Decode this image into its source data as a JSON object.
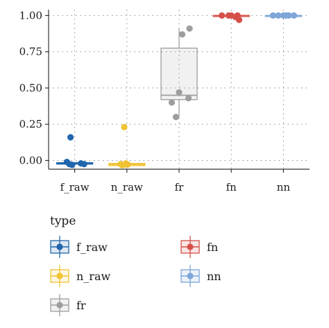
{
  "chart_data": {
    "type": "box",
    "categories": [
      "f_raw",
      "n_raw",
      "fr",
      "fn",
      "nn"
    ],
    "ylim": [
      -0.06,
      1.04
    ],
    "yticks": [
      0.0,
      0.25,
      0.5,
      0.75,
      1.0
    ],
    "ytick_labels": [
      "0.00",
      "0.25",
      "0.50",
      "0.75",
      "1.00"
    ],
    "grid": "dotted",
    "legend": {
      "title": "type",
      "placement": "bottom",
      "entries": [
        "f_raw",
        "n_raw",
        "fr",
        "fn",
        "nn"
      ]
    },
    "colors": {
      "f_raw": "#2166ac",
      "n_raw": "#f1c232",
      "fr": "#9e9e9e",
      "fn": "#d6504a",
      "nn": "#7ea6d9"
    },
    "boxes": [
      {
        "name": "f_raw",
        "q1": -0.025,
        "median": -0.02,
        "q3": -0.015,
        "whisker_low": -0.03,
        "whisker_high": -0.01
      },
      {
        "name": "n_raw",
        "q1": -0.035,
        "median": -0.028,
        "q3": -0.02,
        "whisker_low": -0.038,
        "whisker_high": -0.015
      },
      {
        "name": "fr",
        "q1": 0.42,
        "median": 0.45,
        "q3": 0.775,
        "whisker_low": 0.3,
        "whisker_high": 0.91
      },
      {
        "name": "fn",
        "q1": 0.995,
        "median": 1.0,
        "q3": 1.0,
        "whisker_low": 0.99,
        "whisker_high": 1.0
      },
      {
        "name": "nn",
        "q1": 0.998,
        "median": 1.0,
        "q3": 1.0,
        "whisker_low": 0.996,
        "whisker_high": 1.0
      }
    ],
    "points": [
      {
        "name": "f_raw",
        "values": [
          0.16,
          -0.01,
          -0.025,
          -0.03,
          -0.02,
          -0.025
        ],
        "jitter": [
          -0.08,
          -0.15,
          -0.1,
          -0.05,
          0.12,
          0.18
        ]
      },
      {
        "name": "n_raw",
        "values": [
          0.23,
          -0.025,
          -0.03,
          -0.02,
          -0.028,
          -0.032
        ],
        "jitter": [
          -0.05,
          -0.12,
          -0.06,
          -0.02,
          0.02,
          -0.09
        ]
      },
      {
        "name": "fr",
        "values": [
          0.91,
          0.87,
          0.47,
          0.43,
          0.4,
          0.3
        ],
        "jitter": [
          0.2,
          0.06,
          0.0,
          0.18,
          -0.14,
          -0.06
        ]
      },
      {
        "name": "fn",
        "values": [
          1.0,
          0.99,
          0.97,
          1.0,
          1.0,
          1.0
        ],
        "jitter": [
          -0.18,
          0.08,
          0.15,
          -0.05,
          0.0,
          0.12
        ]
      },
      {
        "name": "nn",
        "values": [
          1.0,
          1.0,
          1.0,
          1.0,
          1.0,
          1.0
        ],
        "jitter": [
          -0.2,
          -0.1,
          0.0,
          0.1,
          0.2,
          0.05
        ]
      }
    ]
  }
}
